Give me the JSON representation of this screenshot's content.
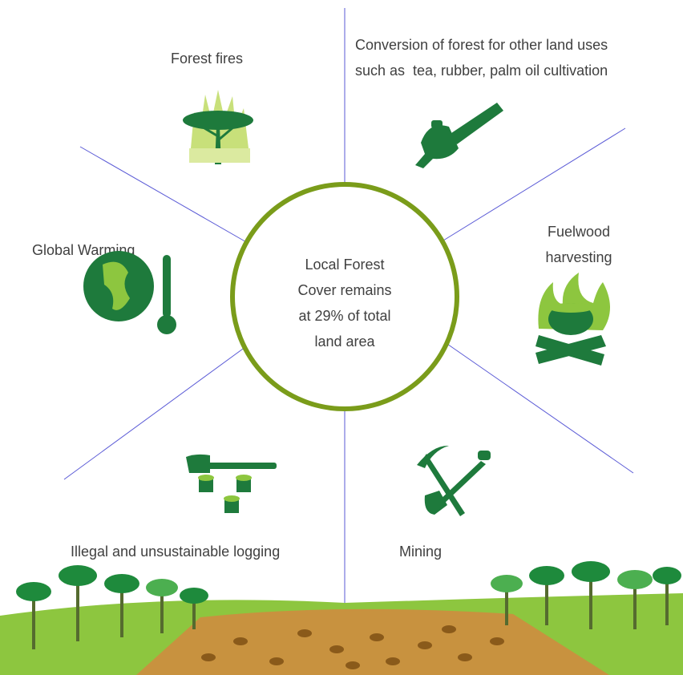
{
  "center": {
    "lines": [
      "Local Forest",
      "Cover remains",
      "at 29% of total",
      "land area"
    ]
  },
  "drivers": [
    {
      "lines": [
        "Forest fires"
      ]
    },
    {
      "lines": [
        "Conversion of forest for other land uses",
        "such as  tea, rubber, palm oil cultivation"
      ]
    },
    {
      "lines": [
        "Global Warming"
      ]
    },
    {
      "lines": [
        "Fuelwood",
        "harvesting"
      ]
    },
    {
      "lines": [
        "Illegal and unsustainable logging"
      ]
    },
    {
      "lines": [
        "Mining"
      ]
    }
  ]
}
